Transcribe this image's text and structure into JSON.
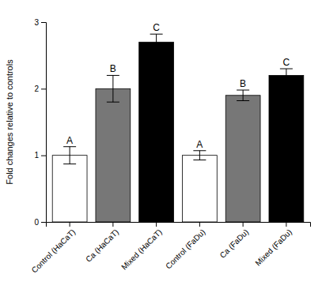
{
  "chart_data": {
    "type": "bar",
    "categories": [
      "Control (HaCaT)",
      "Ca (HaCaT)",
      "Mixed (HaCaT)",
      "Control (FaDu)",
      "Ca (FaDu)",
      "Mixed (FaDu)"
    ],
    "values": [
      1.0,
      2.0,
      2.7,
      1.0,
      1.9,
      2.2
    ],
    "errors": [
      0.13,
      0.2,
      0.12,
      0.07,
      0.08,
      0.1
    ],
    "colors": [
      "white",
      "#777777",
      "black",
      "white",
      "#777777",
      "black"
    ],
    "annotations": [
      "A",
      "B",
      "C",
      "A",
      "B",
      "C"
    ],
    "ylabel": "Fold changes relative to controls",
    "ylim": [
      0,
      3
    ],
    "yticks": [
      0,
      1,
      2,
      3
    ]
  }
}
